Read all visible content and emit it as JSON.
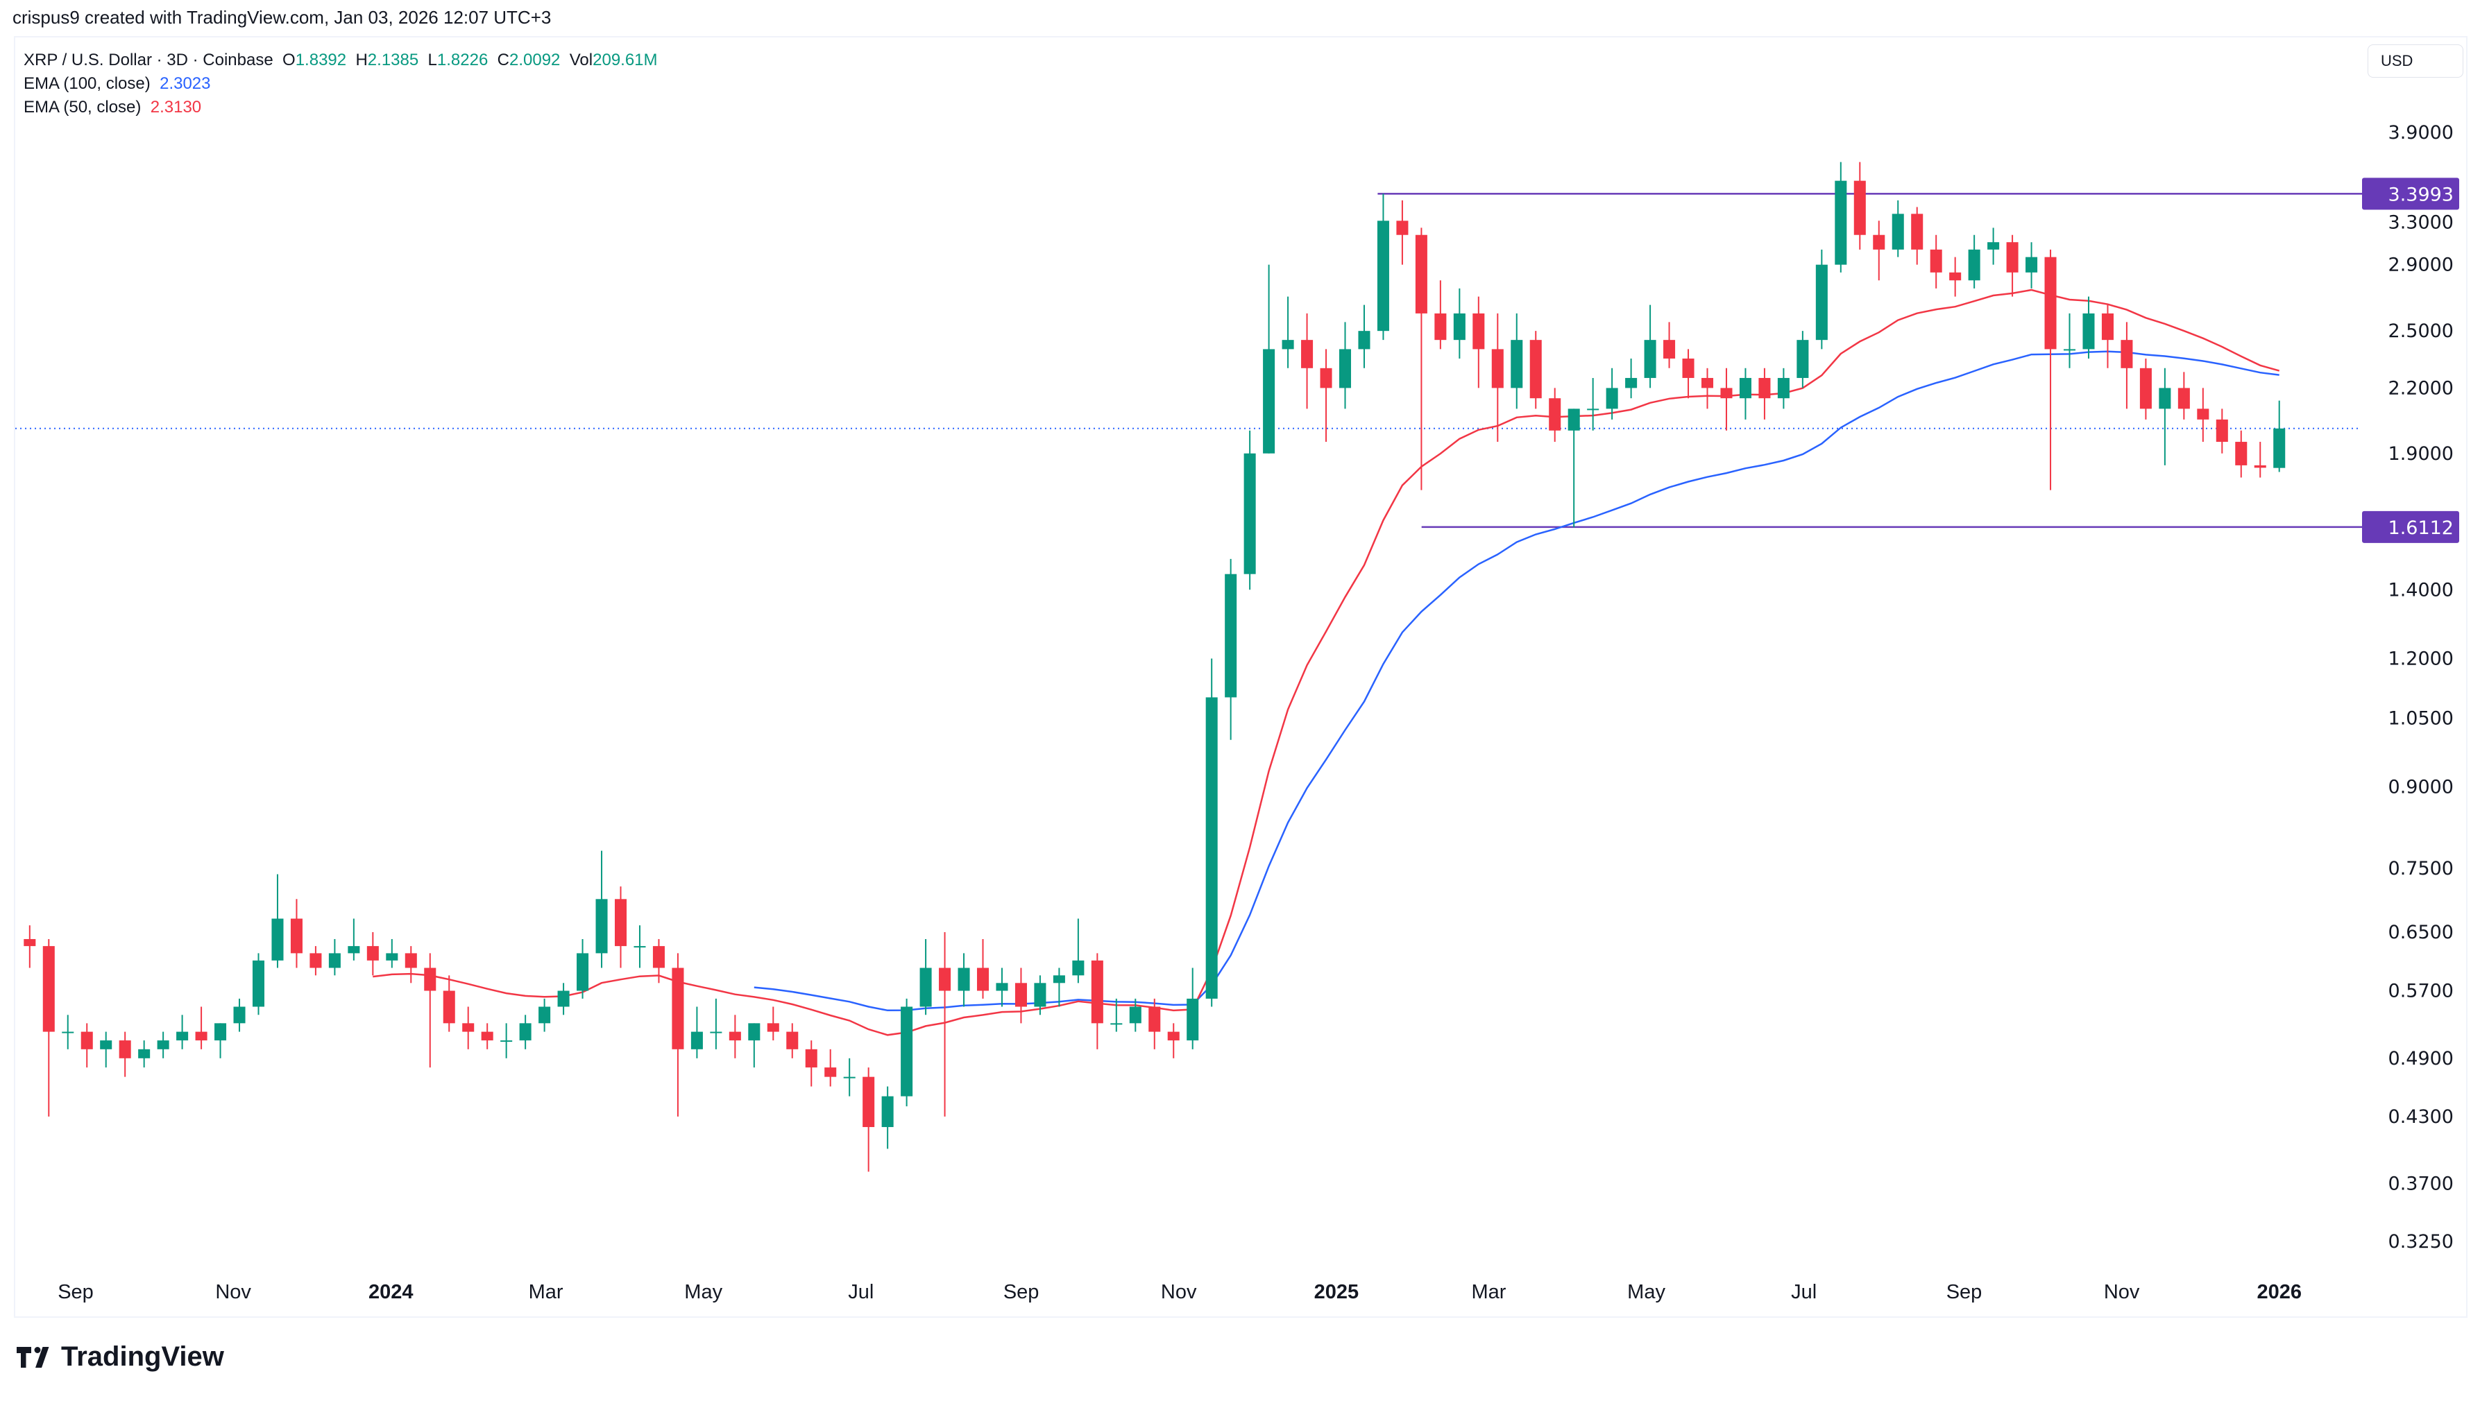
{
  "credit": "crispus9 created with TradingView.com, Jan 03, 2026 12:07 UTC+3",
  "legend": {
    "symbol": "XRP / U.S. Dollar · 3D · Coinbase",
    "o_label": "O",
    "o": "1.8392",
    "h_label": "H",
    "h": "2.1385",
    "l_label": "L",
    "l": "1.8226",
    "c_label": "C",
    "c": "2.0092",
    "vol_label": "Vol",
    "vol": "209.61M",
    "ema100_label": "EMA (100, close)",
    "ema100": "2.3023",
    "ema50_label": "EMA (50, close)",
    "ema50": "2.3130"
  },
  "currency_button": "USD",
  "logo_text": "TradingView",
  "colors": {
    "up": "#089981",
    "down": "#f23645",
    "ema100": "#2962ff",
    "ema50": "#f23645",
    "level": "#673ab7",
    "price_line": "#2962ff"
  },
  "chart_data": {
    "type": "candlestick",
    "interval": "3D",
    "y_scale": "log",
    "ylim": [
      0.3,
      4.2
    ],
    "y_ticks": [
      "3.9000",
      "3.3000",
      "2.9000",
      "2.5000",
      "2.2000",
      "1.9000",
      "1.4000",
      "1.2000",
      "1.0500",
      "0.9000",
      "0.7500",
      "0.6500",
      "0.5700",
      "0.4900",
      "0.4300",
      "0.3700",
      "0.3250"
    ],
    "x_ticks": [
      {
        "label": "Sep",
        "date": "2023-09-01"
      },
      {
        "label": "Nov",
        "date": "2023-11-01"
      },
      {
        "label": "2024",
        "date": "2024-01-01",
        "bold": true
      },
      {
        "label": "Mar",
        "date": "2024-03-01"
      },
      {
        "label": "May",
        "date": "2024-05-01"
      },
      {
        "label": "Jul",
        "date": "2024-07-01"
      },
      {
        "label": "Sep",
        "date": "2024-09-01"
      },
      {
        "label": "Nov",
        "date": "2024-11-01"
      },
      {
        "label": "2025",
        "date": "2025-01-01",
        "bold": true
      },
      {
        "label": "Mar",
        "date": "2025-03-01"
      },
      {
        "label": "May",
        "date": "2025-05-01"
      },
      {
        "label": "Jul",
        "date": "2025-07-01"
      },
      {
        "label": "Sep",
        "date": "2025-09-01"
      },
      {
        "label": "Nov",
        "date": "2025-11-01"
      },
      {
        "label": "2026",
        "date": "2026-01-01",
        "bold": true
      }
    ],
    "x_range": [
      "2023-08-11",
      "2026-01-01"
    ],
    "horizontal_levels": [
      {
        "value": 3.3993,
        "label": "3.3993",
        "from": "2025-01-17"
      },
      {
        "value": 1.6112,
        "label": "1.6112",
        "from": "2025-02-03"
      }
    ],
    "current_price": 2.0092,
    "ohlc": [
      [
        0.64,
        0.66,
        0.6,
        0.63
      ],
      [
        0.63,
        0.64,
        0.43,
        0.52
      ],
      [
        0.52,
        0.54,
        0.5,
        0.52
      ],
      [
        0.52,
        0.53,
        0.48,
        0.5
      ],
      [
        0.5,
        0.52,
        0.48,
        0.51
      ],
      [
        0.51,
        0.52,
        0.47,
        0.49
      ],
      [
        0.49,
        0.51,
        0.48,
        0.5
      ],
      [
        0.5,
        0.52,
        0.49,
        0.51
      ],
      [
        0.51,
        0.54,
        0.5,
        0.52
      ],
      [
        0.52,
        0.55,
        0.5,
        0.51
      ],
      [
        0.51,
        0.53,
        0.49,
        0.53
      ],
      [
        0.53,
        0.56,
        0.52,
        0.55
      ],
      [
        0.55,
        0.62,
        0.54,
        0.61
      ],
      [
        0.61,
        0.74,
        0.6,
        0.67
      ],
      [
        0.67,
        0.7,
        0.6,
        0.62
      ],
      [
        0.62,
        0.63,
        0.59,
        0.6
      ],
      [
        0.6,
        0.64,
        0.59,
        0.62
      ],
      [
        0.62,
        0.67,
        0.61,
        0.63
      ],
      [
        0.63,
        0.65,
        0.59,
        0.61
      ],
      [
        0.61,
        0.64,
        0.6,
        0.62
      ],
      [
        0.62,
        0.63,
        0.58,
        0.6
      ],
      [
        0.6,
        0.62,
        0.48,
        0.57
      ],
      [
        0.57,
        0.59,
        0.52,
        0.53
      ],
      [
        0.53,
        0.55,
        0.5,
        0.52
      ],
      [
        0.52,
        0.53,
        0.5,
        0.51
      ],
      [
        0.51,
        0.53,
        0.49,
        0.51
      ],
      [
        0.51,
        0.54,
        0.5,
        0.53
      ],
      [
        0.53,
        0.56,
        0.52,
        0.55
      ],
      [
        0.55,
        0.58,
        0.54,
        0.57
      ],
      [
        0.57,
        0.64,
        0.56,
        0.62
      ],
      [
        0.62,
        0.78,
        0.6,
        0.7
      ],
      [
        0.7,
        0.72,
        0.6,
        0.63
      ],
      [
        0.63,
        0.66,
        0.6,
        0.63
      ],
      [
        0.63,
        0.64,
        0.58,
        0.6
      ],
      [
        0.6,
        0.62,
        0.43,
        0.5
      ],
      [
        0.5,
        0.55,
        0.49,
        0.52
      ],
      [
        0.52,
        0.56,
        0.5,
        0.52
      ],
      [
        0.52,
        0.54,
        0.49,
        0.51
      ],
      [
        0.51,
        0.53,
        0.48,
        0.53
      ],
      [
        0.53,
        0.55,
        0.51,
        0.52
      ],
      [
        0.52,
        0.53,
        0.49,
        0.5
      ],
      [
        0.5,
        0.51,
        0.46,
        0.48
      ],
      [
        0.48,
        0.5,
        0.46,
        0.47
      ],
      [
        0.47,
        0.49,
        0.45,
        0.47
      ],
      [
        0.47,
        0.48,
        0.38,
        0.42
      ],
      [
        0.42,
        0.46,
        0.4,
        0.45
      ],
      [
        0.45,
        0.56,
        0.44,
        0.55
      ],
      [
        0.55,
        0.64,
        0.54,
        0.6
      ],
      [
        0.6,
        0.65,
        0.43,
        0.57
      ],
      [
        0.57,
        0.62,
        0.55,
        0.6
      ],
      [
        0.6,
        0.64,
        0.56,
        0.57
      ],
      [
        0.57,
        0.6,
        0.55,
        0.58
      ],
      [
        0.58,
        0.6,
        0.53,
        0.55
      ],
      [
        0.55,
        0.59,
        0.54,
        0.58
      ],
      [
        0.58,
        0.6,
        0.55,
        0.59
      ],
      [
        0.59,
        0.67,
        0.58,
        0.61
      ],
      [
        0.61,
        0.62,
        0.5,
        0.53
      ],
      [
        0.53,
        0.56,
        0.52,
        0.53
      ],
      [
        0.53,
        0.56,
        0.52,
        0.55
      ],
      [
        0.55,
        0.56,
        0.5,
        0.52
      ],
      [
        0.52,
        0.53,
        0.49,
        0.51
      ],
      [
        0.51,
        0.6,
        0.5,
        0.56
      ],
      [
        0.56,
        1.2,
        0.55,
        1.1
      ],
      [
        1.1,
        1.5,
        1.0,
        1.45
      ],
      [
        1.45,
        2.0,
        1.4,
        1.9
      ],
      [
        1.9,
        2.9,
        1.9,
        2.4
      ],
      [
        2.4,
        2.7,
        2.3,
        2.45
      ],
      [
        2.45,
        2.6,
        2.1,
        2.3
      ],
      [
        2.3,
        2.4,
        1.95,
        2.2
      ],
      [
        2.2,
        2.55,
        2.1,
        2.4
      ],
      [
        2.4,
        2.65,
        2.3,
        2.5
      ],
      [
        2.5,
        3.4,
        2.45,
        3.2
      ],
      [
        3.2,
        3.35,
        2.9,
        3.1
      ],
      [
        3.1,
        3.15,
        1.75,
        2.6
      ],
      [
        2.6,
        2.8,
        2.4,
        2.45
      ],
      [
        2.45,
        2.75,
        2.35,
        2.6
      ],
      [
        2.6,
        2.7,
        2.2,
        2.4
      ],
      [
        2.4,
        2.6,
        1.95,
        2.2
      ],
      [
        2.2,
        2.6,
        2.1,
        2.45
      ],
      [
        2.45,
        2.5,
        2.1,
        2.15
      ],
      [
        2.15,
        2.2,
        1.95,
        2.0
      ],
      [
        2.0,
        2.1,
        1.61,
        2.1
      ],
      [
        2.1,
        2.25,
        2.0,
        2.1
      ],
      [
        2.1,
        2.3,
        2.05,
        2.2
      ],
      [
        2.2,
        2.35,
        2.15,
        2.25
      ],
      [
        2.25,
        2.65,
        2.2,
        2.45
      ],
      [
        2.45,
        2.55,
        2.3,
        2.35
      ],
      [
        2.35,
        2.4,
        2.15,
        2.25
      ],
      [
        2.25,
        2.3,
        2.1,
        2.2
      ],
      [
        2.2,
        2.3,
        2.0,
        2.15
      ],
      [
        2.15,
        2.3,
        2.05,
        2.25
      ],
      [
        2.25,
        2.3,
        2.05,
        2.15
      ],
      [
        2.15,
        2.3,
        2.1,
        2.25
      ],
      [
        2.25,
        2.5,
        2.2,
        2.45
      ],
      [
        2.45,
        3.0,
        2.4,
        2.9
      ],
      [
        2.9,
        3.65,
        2.85,
        3.5
      ],
      [
        3.5,
        3.65,
        3.0,
        3.1
      ],
      [
        3.1,
        3.2,
        2.8,
        3.0
      ],
      [
        3.0,
        3.35,
        2.95,
        3.25
      ],
      [
        3.25,
        3.3,
        2.9,
        3.0
      ],
      [
        3.0,
        3.1,
        2.75,
        2.85
      ],
      [
        2.85,
        2.95,
        2.7,
        2.8
      ],
      [
        2.8,
        3.1,
        2.75,
        3.0
      ],
      [
        3.0,
        3.15,
        2.9,
        3.05
      ],
      [
        3.05,
        3.1,
        2.7,
        2.85
      ],
      [
        2.85,
        3.05,
        2.75,
        2.95
      ],
      [
        2.95,
        3.0,
        1.75,
        2.4
      ],
      [
        2.4,
        2.6,
        2.3,
        2.4
      ],
      [
        2.4,
        2.7,
        2.35,
        2.6
      ],
      [
        2.6,
        2.65,
        2.3,
        2.45
      ],
      [
        2.45,
        2.55,
        2.1,
        2.3
      ],
      [
        2.3,
        2.35,
        2.05,
        2.1
      ],
      [
        2.1,
        2.3,
        1.85,
        2.2
      ],
      [
        2.2,
        2.28,
        2.05,
        2.1
      ],
      [
        2.1,
        2.2,
        1.95,
        2.05
      ],
      [
        2.05,
        2.1,
        1.9,
        1.95
      ],
      [
        1.95,
        2.0,
        1.8,
        1.85
      ],
      [
        1.85,
        1.95,
        1.8,
        1.84
      ],
      [
        1.8392,
        2.1385,
        1.8226,
        2.0092
      ]
    ],
    "series": [
      {
        "name": "EMA (100, close)"
      },
      {
        "name": "EMA (50, close)"
      }
    ]
  }
}
